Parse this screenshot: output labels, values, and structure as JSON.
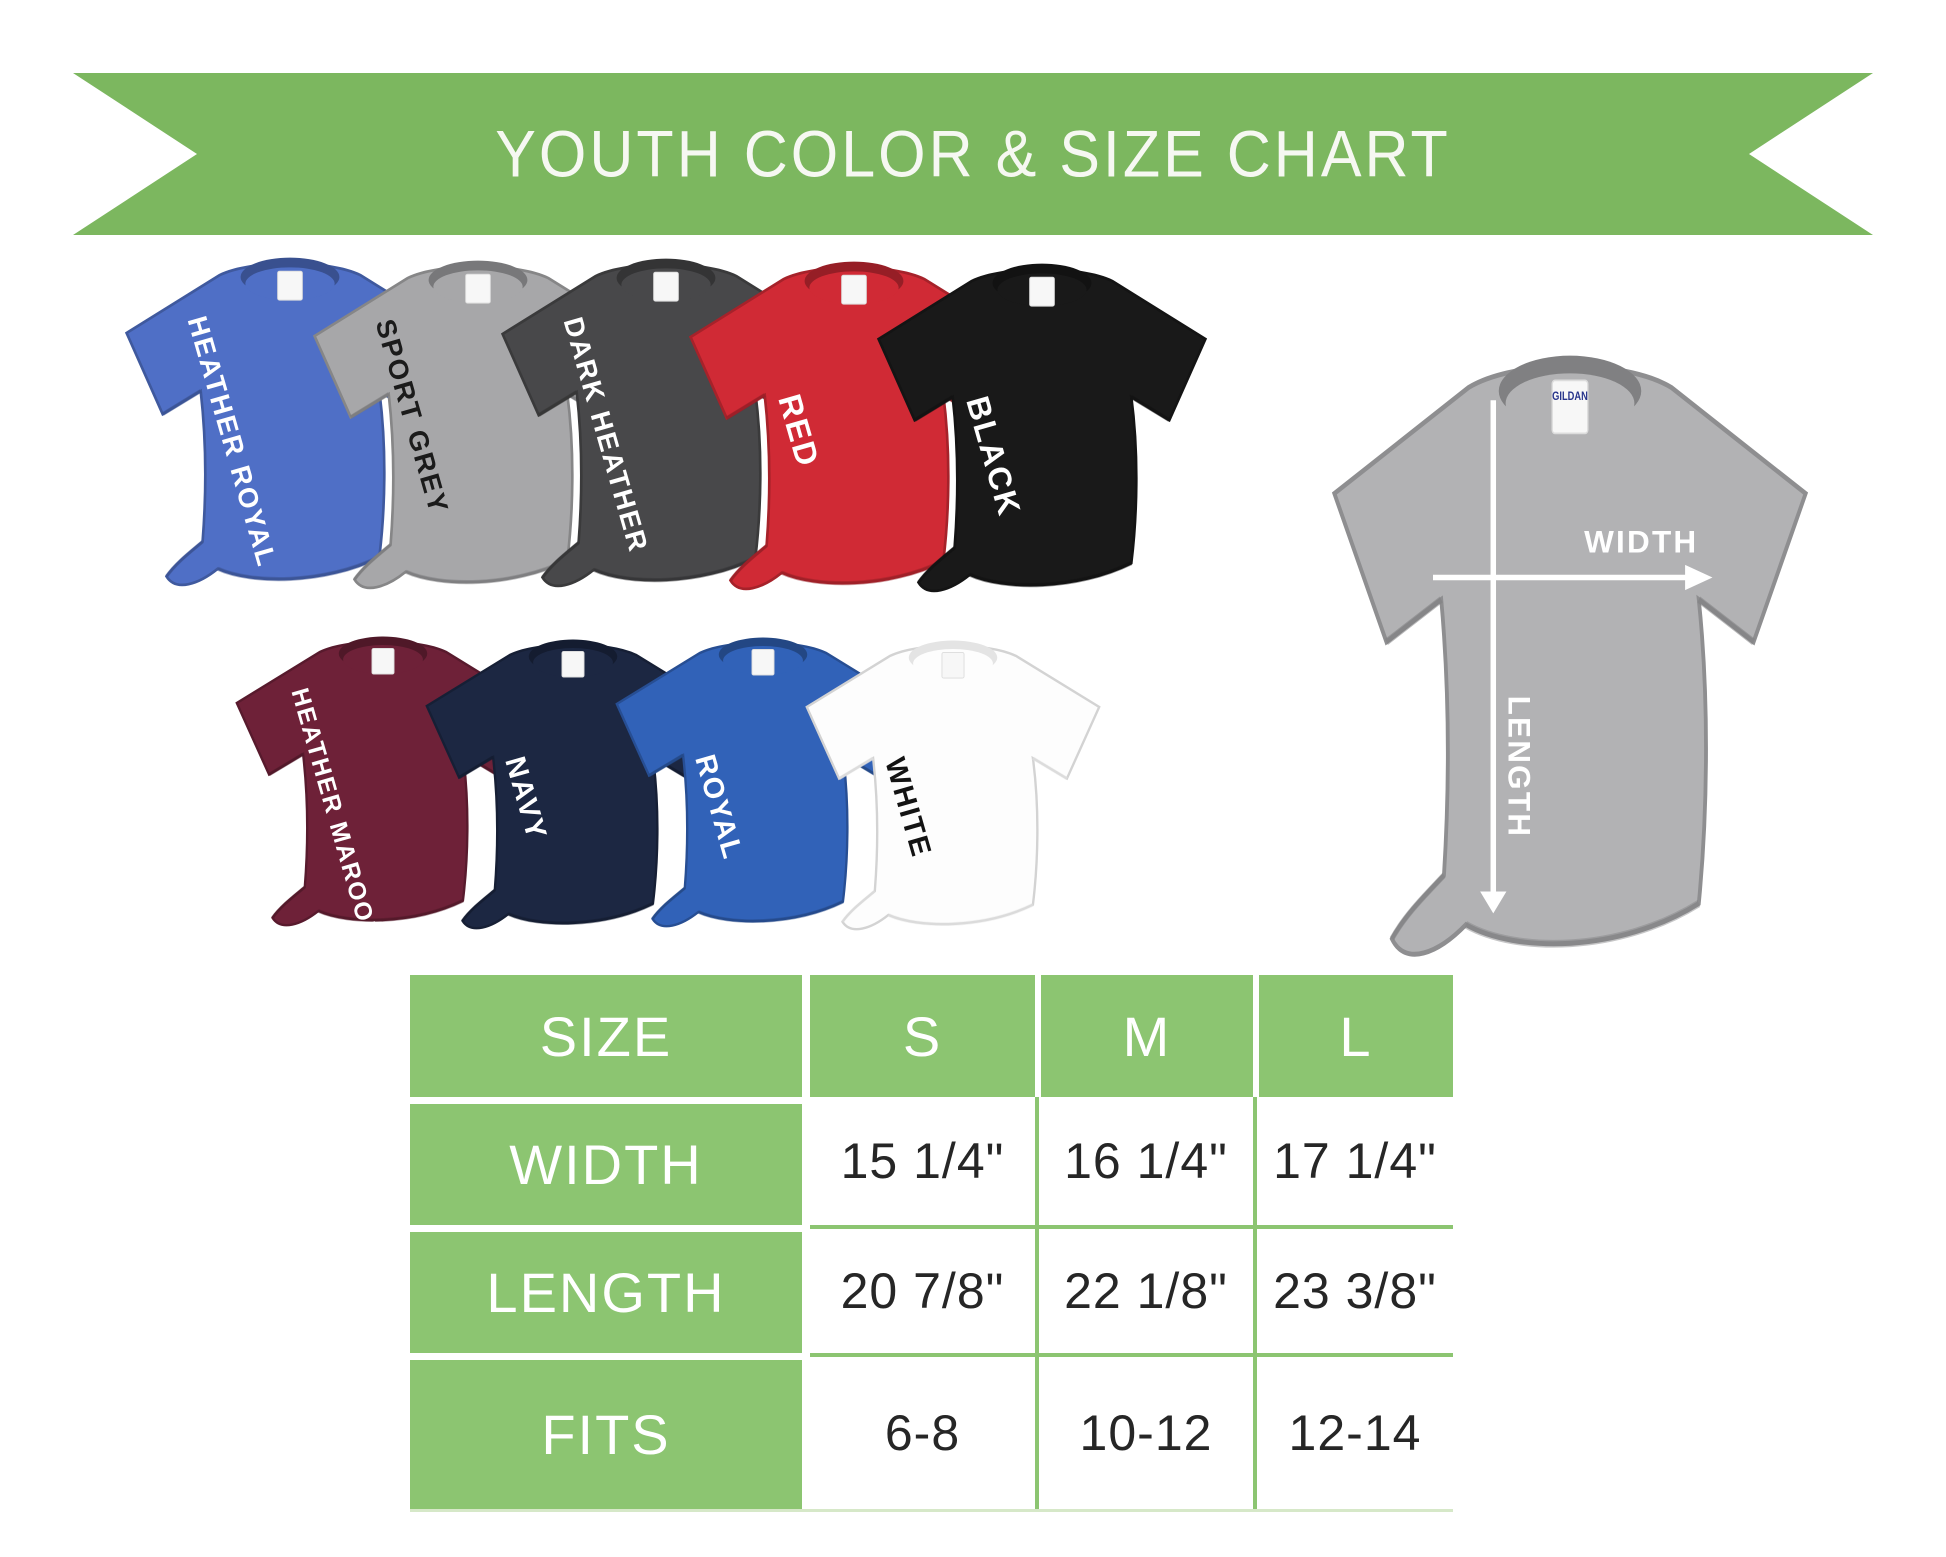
{
  "banner": {
    "title": "YOUTH COLOR & SIZE CHART",
    "bg_color": "#7cb75f",
    "text_color": "#f6f8f2"
  },
  "shirts": {
    "row1": [
      {
        "label": "HEATHER ROYAL",
        "color": "#4f6fc6",
        "text_color": "#ffffff"
      },
      {
        "label": "SPORT GREY",
        "color": "#a7a7a9",
        "text_color": "#1b1b1b"
      },
      {
        "label": "DARK HEATHER",
        "color": "#48484a",
        "text_color": "#ffffff"
      },
      {
        "label": "RED",
        "color": "#d02a35",
        "text_color": "#ffffff"
      },
      {
        "label": "BLACK",
        "color": "#191919",
        "text_color": "#ffffff"
      }
    ],
    "row2": [
      {
        "label": "HEATHER MAROON",
        "color": "#6e2138",
        "text_color": "#ffffff"
      },
      {
        "label": "NAVY",
        "color": "#1c2742",
        "text_color": "#ffffff"
      },
      {
        "label": "ROYAL",
        "color": "#3162b8",
        "text_color": "#ffffff"
      },
      {
        "label": "WHITE",
        "color": "#fdfdfd",
        "text_color": "#131313"
      }
    ]
  },
  "measurement_shirt": {
    "color": "#b2b2b4",
    "width_label": "WIDTH",
    "length_label": "LENGTH",
    "brand_label": "GILDAN",
    "annotation_color": "#ffffff"
  },
  "size_table": {
    "header_bg": "#8cc571",
    "grid_color": "#8cc571",
    "header_text_color": "#ffffff",
    "value_text_color": "#262626"
  },
  "chart_data": {
    "type": "table",
    "title": "YOUTH COLOR & SIZE CHART",
    "columns": [
      "SIZE",
      "S",
      "M",
      "L"
    ],
    "rows": [
      {
        "label": "WIDTH",
        "values": [
          "15 1/4\"",
          "16 1/4\"",
          "17 1/4\""
        ]
      },
      {
        "label": "LENGTH",
        "values": [
          "20 7/8\"",
          "22 1/8\"",
          "23 3/8\""
        ]
      },
      {
        "label": "FITS",
        "values": [
          "6-8",
          "10-12",
          "12-14"
        ]
      }
    ],
    "legend_shirt_colors": [
      "HEATHER ROYAL",
      "SPORT GREY",
      "DARK HEATHER",
      "RED",
      "BLACK",
      "HEATHER MAROON",
      "NAVY",
      "ROYAL",
      "WHITE"
    ],
    "layout_hints": {
      "header_column": true,
      "header_row": true,
      "grid": true
    }
  }
}
